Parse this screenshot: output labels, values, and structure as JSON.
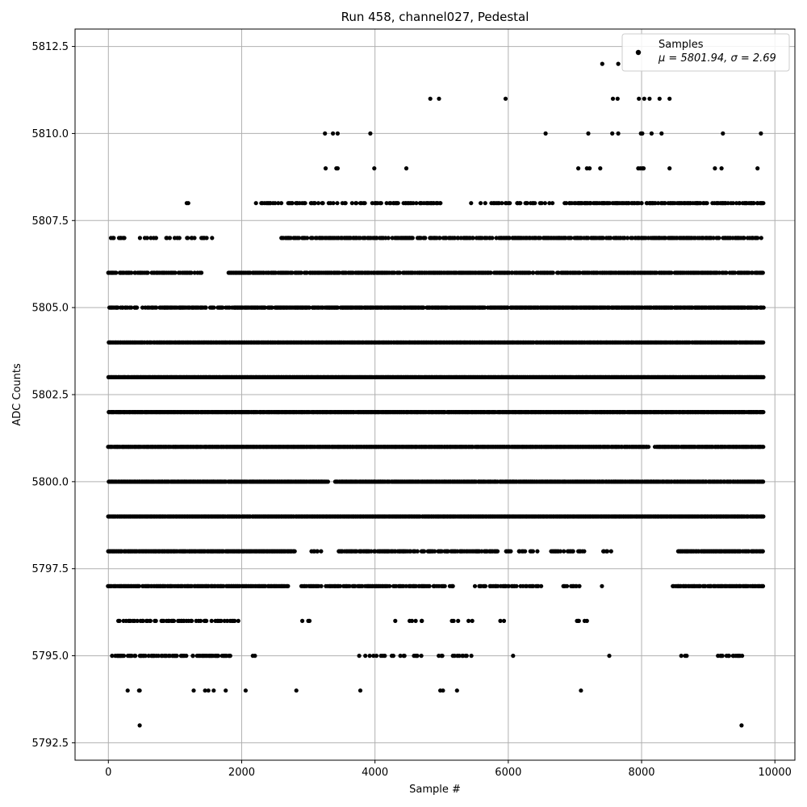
{
  "chart_data": {
    "type": "scatter",
    "title": "Run 458, channel027, Pedestal",
    "xlabel": "Sample #",
    "ylabel": "ADC Counts",
    "xlim": [
      -500,
      10300
    ],
    "ylim": [
      5792.0,
      5813.0
    ],
    "xticks": [
      0,
      2000,
      4000,
      6000,
      8000,
      10000
    ],
    "xtick_labels": [
      "0",
      "2000",
      "4000",
      "6000",
      "8000",
      "10000"
    ],
    "yticks": [
      5792.5,
      5795.0,
      5797.5,
      5800.0,
      5802.5,
      5805.0,
      5807.5,
      5810.0,
      5812.5
    ],
    "ytick_labels": [
      "5792.5",
      "5795.0",
      "5797.5",
      "5800.0",
      "5802.5",
      "5805.0",
      "5807.5",
      "5810.0",
      "5812.5"
    ],
    "grid": true,
    "legend_position": "top-right",
    "marker_color": "#000000",
    "series": [
      {
        "name": "Samples",
        "stats_label": "μ = 5801.94, σ = 2.69",
        "mean": 5801.94,
        "std": 2.69,
        "n_samples": 9830,
        "x_start": 0,
        "x_end": 9830,
        "level_density": [
          {
            "y": 5793,
            "x": [
              470,
              9500
            ]
          },
          {
            "y": 5794,
            "x": [
              290,
              460,
              470,
              1280,
              1450,
              1500,
              1580,
              1760,
              2060,
              2820,
              3780,
              4980,
              5020,
              5230,
              7090
            ]
          },
          {
            "y": 5795,
            "segments": [
              [
                0,
                1850,
                0.5
              ],
              [
                1900,
                2300,
                0.15
              ],
              [
                2550,
                2650,
                0.1
              ],
              [
                3750,
                4700,
                0.25
              ],
              [
                4950,
                5450,
                0.3
              ],
              [
                6050,
                6150,
                0.2
              ],
              [
                7450,
                7550,
                0.2
              ],
              [
                8600,
                8700,
                0.2
              ],
              [
                9150,
                9550,
                0.4
              ]
            ]
          },
          {
            "y": 5796,
            "segments": [
              [
                150,
                1950,
                0.35
              ],
              [
                2600,
                3150,
                0.1
              ],
              [
                4150,
                4850,
                0.1
              ],
              [
                4950,
                5500,
                0.15
              ],
              [
                5850,
                6050,
                0.1
              ],
              [
                7000,
                7200,
                0.3
              ]
            ]
          },
          {
            "y": 5797,
            "segments": [
              [
                0,
                2700,
                0.9
              ],
              [
                2900,
                5200,
                0.6
              ],
              [
                5500,
                6500,
                0.5
              ],
              [
                6800,
                7150,
                0.4
              ],
              [
                7400,
                7550,
                0.2
              ],
              [
                8450,
                9830,
                0.8
              ]
            ]
          },
          {
            "y": 5798,
            "segments": [
              [
                0,
                2800,
                0.95
              ],
              [
                3050,
                3200,
                0.3
              ],
              [
                3450,
                4650,
                0.75
              ],
              [
                4700,
                5850,
                0.7
              ],
              [
                5950,
                6450,
                0.4
              ],
              [
                6650,
                7150,
                0.45
              ],
              [
                7400,
                7550,
                0.4
              ],
              [
                8550,
                9830,
                0.85
              ]
            ]
          },
          {
            "y": 5799,
            "segments": [
              [
                0,
                7450,
                0.98
              ],
              [
                7450,
                9830,
                0.95
              ]
            ]
          },
          {
            "y": 5800,
            "segments": [
              [
                0,
                3300,
                0.97
              ],
              [
                3400,
                9830,
                0.93
              ]
            ]
          },
          {
            "y": 5801,
            "segments": [
              [
                0,
                8100,
                0.99
              ],
              [
                8200,
                9830,
                0.98
              ]
            ]
          },
          {
            "y": 5802,
            "segments": [
              [
                0,
                9830,
                0.99
              ]
            ]
          },
          {
            "y": 5803,
            "segments": [
              [
                0,
                9830,
                0.99
              ]
            ]
          },
          {
            "y": 5804,
            "segments": [
              [
                0,
                9830,
                0.98
              ]
            ]
          },
          {
            "y": 5805,
            "segments": [
              [
                0,
                1900,
                0.6
              ],
              [
                1900,
                9830,
                0.9
              ]
            ]
          },
          {
            "y": 5806,
            "segments": [
              [
                0,
                1400,
                0.6
              ],
              [
                1800,
                9830,
                0.75
              ]
            ]
          },
          {
            "y": 5807,
            "segments": [
              [
                0,
                1600,
                0.25
              ],
              [
                2600,
                9830,
                0.6
              ]
            ]
          },
          {
            "y": 5808,
            "segments": [
              [
                1180,
                1200,
                1.0
              ],
              [
                2100,
                5000,
                0.35
              ],
              [
                5350,
                6700,
                0.3
              ],
              [
                6850,
                9830,
                0.6
              ]
            ]
          },
          {
            "y": 5809,
            "x": [
              3260,
              3420,
              3440,
              3990,
              4470,
              7050,
              7180,
              7220,
              7380,
              7950,
              7980,
              8010,
              8030,
              8420,
              9100,
              9200,
              9740
            ]
          },
          {
            "y": 5810,
            "x": [
              3250,
              3370,
              3440,
              3930,
              6560,
              7200,
              7560,
              7650,
              7990,
              8010,
              8150,
              8300,
              9220,
              9790
            ]
          },
          {
            "y": 5811,
            "x": [
              4830,
              4960,
              5960,
              7570,
              7640,
              7960,
              8040,
              8120,
              8270,
              8420
            ]
          },
          {
            "y": 5812,
            "x": [
              7410,
              7650
            ]
          }
        ]
      }
    ]
  }
}
